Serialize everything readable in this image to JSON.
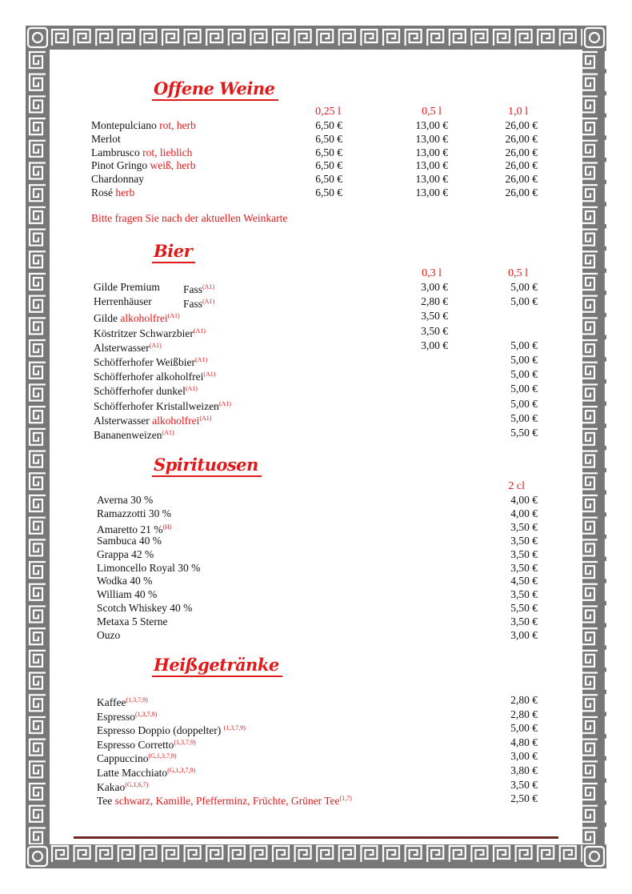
{
  "colors": {
    "accent": "#e01a1a",
    "border": "#777777",
    "rule": "#6b2b22"
  },
  "wine": {
    "title": "Offene Weine",
    "sizes": [
      "0,25 l",
      "0,5 l",
      "1,0 l"
    ],
    "items": [
      {
        "name": "Montepulciano",
        "desc": "rot, herb",
        "prices": [
          "6,50 €",
          "13,00 €",
          "26,00 €"
        ]
      },
      {
        "name": "Merlot",
        "desc": "",
        "prices": [
          "6,50 €",
          "13,00 €",
          "26,00 €"
        ]
      },
      {
        "name": "Lambrusco",
        "desc": "rot, lieblich",
        "prices": [
          "6,50 €",
          "13,00 €",
          "26,00 €"
        ]
      },
      {
        "name": "Pinot Gringo",
        "desc": "weiß, herb",
        "prices": [
          "6,50 €",
          "13,00 €",
          "26,00 €"
        ]
      },
      {
        "name": "Chardonnay",
        "desc": "",
        "prices": [
          "6,50 €",
          "13,00 €",
          "26,00 €"
        ]
      },
      {
        "name": "Rosé",
        "desc": "herb",
        "prices": [
          "6,50 €",
          "13,00 €",
          "26,00 €"
        ]
      }
    ],
    "note": "Bitte fragen Sie nach der aktuellen Weinkarte"
  },
  "beer": {
    "title": "Bier",
    "sizes": [
      "0,3 l",
      "0,5 l"
    ],
    "items": [
      {
        "name": "Gilde Premium",
        "fass": "Fass",
        "allergen": "(A1)",
        "prices": [
          "3,00 €",
          "5,00 €"
        ]
      },
      {
        "name": "Herrenhäuser",
        "fass": "Fass",
        "allergen": "(A1)",
        "prices": [
          "2,80 €",
          "5,00 €"
        ]
      },
      {
        "name": "Gilde",
        "desc": "alkoholfrei",
        "allergen": "(A1)",
        "prices": [
          "3,50 €",
          ""
        ]
      },
      {
        "name": "Köstritzer Schwarzbier",
        "allergen": "(A1)",
        "prices": [
          "3,50 €",
          ""
        ]
      },
      {
        "name": "Alsterwasser",
        "allergen": "(A1)",
        "prices": [
          "3,00 €",
          "5,00 €"
        ]
      },
      {
        "name": "Schöfferhofer Weißbier",
        "allergen": "(A1)",
        "prices": [
          "",
          "5,00 €"
        ]
      },
      {
        "name": "Schöfferhofer alkoholfrei",
        "allergen": "(A1)",
        "prices": [
          "",
          "5,00 €"
        ]
      },
      {
        "name": "Schöfferhofer dunkel",
        "allergen": "(A1)",
        "prices": [
          "",
          "5,00 €"
        ]
      },
      {
        "name": "Schöfferhofer Kristallweizen",
        "allergen": "(A1)",
        "prices": [
          "",
          "5,00 €"
        ]
      },
      {
        "name": "Alsterwasser",
        "desc": "alkoholfrei",
        "allergen": "(A1)",
        "prices": [
          "",
          "5,00 €"
        ]
      },
      {
        "name": "Bananenweizen",
        "allergen": "(A1)",
        "prices": [
          "",
          "5,50 €"
        ]
      }
    ]
  },
  "spirits": {
    "title": "Spirituosen",
    "sizes": [
      "2 cl"
    ],
    "items": [
      {
        "name": "Averna 30 %",
        "prices": [
          "4,00 €"
        ]
      },
      {
        "name": "Ramazzotti 30 %",
        "prices": [
          "4,00 €"
        ]
      },
      {
        "name": "Amaretto 21 %",
        "allergen": "(H)",
        "prices": [
          "3,50 €"
        ]
      },
      {
        "name": "Sambuca 40 %",
        "prices": [
          "3,50 €"
        ]
      },
      {
        "name": "Grappa 42 %",
        "prices": [
          "3,50 €"
        ]
      },
      {
        "name": "Limoncello Royal 30 %",
        "prices": [
          "3,50 €"
        ]
      },
      {
        "name": "Wodka 40 %",
        "prices": [
          "4,50 €"
        ]
      },
      {
        "name": "William 40 %",
        "prices": [
          "3,50 €"
        ]
      },
      {
        "name": "Scotch Whiskey 40 %",
        "prices": [
          "5,50 €"
        ]
      },
      {
        "name": "Metaxa 5 Sterne",
        "prices": [
          "3,50 €"
        ]
      },
      {
        "name": "Ouzo",
        "prices": [
          "3,00 €"
        ]
      }
    ]
  },
  "hot": {
    "title": "Heißgetränke",
    "items": [
      {
        "name": "Kaffee",
        "allergen": "(1,3,7,9)",
        "prices": [
          "2,80 €"
        ]
      },
      {
        "name": "Espresso",
        "allergen": "(1,3,7,9)",
        "prices": [
          "2,80 €"
        ]
      },
      {
        "name": "Espresso Doppio (doppelter) ",
        "allergen": "(1,3,7,9)",
        "prices": [
          "5,00 €"
        ]
      },
      {
        "name": "Espresso Corretto",
        "allergen": "(1,3,7,9)",
        "prices": [
          "4,80 €"
        ]
      },
      {
        "name": "Cappuccino",
        "allergen": "(G,1,3,7,9)",
        "prices": [
          "3,00 €"
        ]
      },
      {
        "name": "Latte Macchiato",
        "allergen": "(G,1,3,7,9)",
        "prices": [
          "3,80 €"
        ]
      },
      {
        "name": "Kakao",
        "allergen": "(G,1,6,7)",
        "prices": [
          "3,50 €"
        ]
      },
      {
        "name": "Tee",
        "desc": "schwarz, Kamille, Pfefferminz, Früchte, Grüner Tee",
        "allergen": "(1,7)",
        "prices": [
          "2,50 €"
        ]
      }
    ]
  }
}
